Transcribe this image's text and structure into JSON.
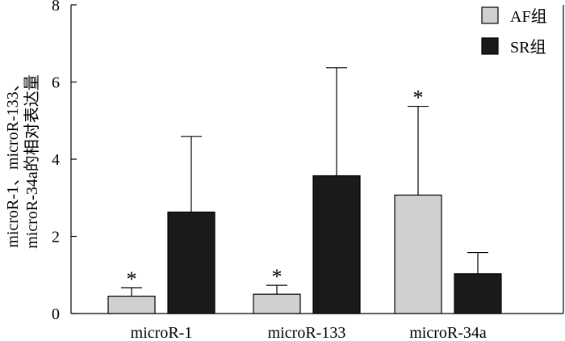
{
  "chart_data": {
    "type": "bar",
    "categories": [
      "microR-1",
      "microR-133",
      "microR-34a"
    ],
    "series": [
      {
        "name": "AF组",
        "color": "#d0d0d0",
        "values": [
          0.45,
          0.5,
          3.07
        ],
        "errors": [
          0.22,
          0.23,
          2.3
        ],
        "significance": [
          "*",
          "*",
          "*"
        ]
      },
      {
        "name": "SR组",
        "color": "#1a1a1a",
        "values": [
          2.63,
          3.57,
          1.03
        ],
        "errors": [
          1.96,
          2.8,
          0.55
        ],
        "significance": [
          "",
          "",
          ""
        ]
      }
    ],
    "ylabel_lines": [
      "microR-1、microR-133、",
      "microR-34a的相对表达量"
    ],
    "ylim": [
      0,
      8
    ],
    "yticks": [
      0,
      2,
      4,
      6,
      8
    ],
    "grid": false,
    "legend_position": "top-right"
  }
}
